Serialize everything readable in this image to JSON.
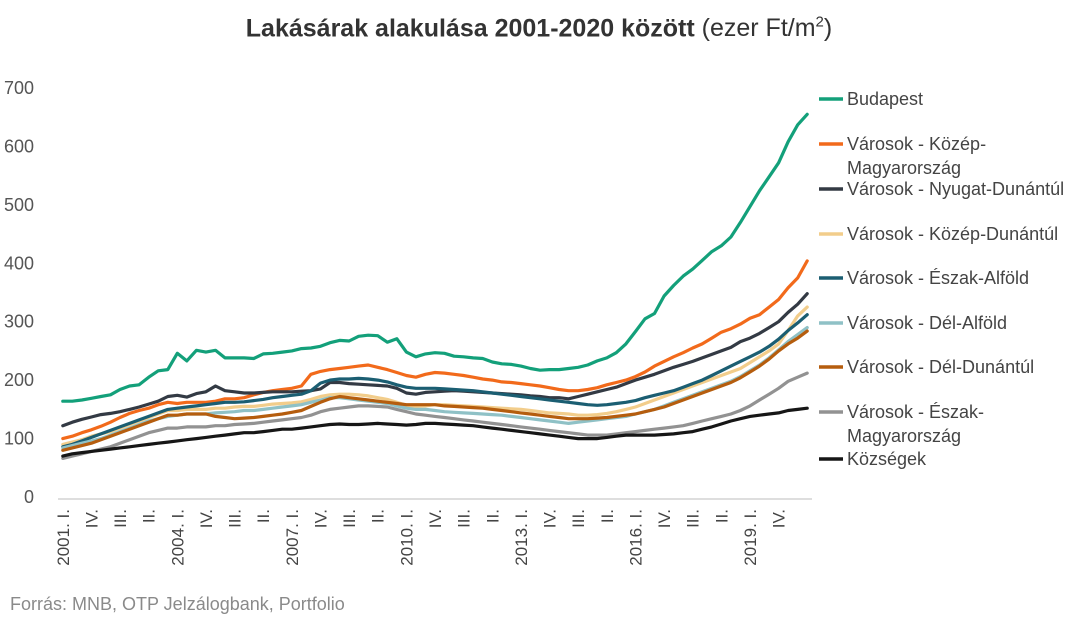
{
  "title": {
    "main": "Lakásárak alakulása 2001-2020 között",
    "unit_prefix": "(ezer Ft/m",
    "unit_sup": "2",
    "unit_suffix": ")"
  },
  "source": "Forrás: MNB, OTP Jelzálogbank, Portfolio",
  "chart_data": {
    "type": "line",
    "ylim": [
      0,
      700
    ],
    "yticks": [
      0,
      100,
      200,
      300,
      400,
      500,
      600,
      700
    ],
    "grid": false,
    "legend_position": "right",
    "x_periods": 79,
    "x_tick_labels": [
      {
        "i": 0,
        "label": "2001. I."
      },
      {
        "i": 3,
        "label": "IV."
      },
      {
        "i": 6,
        "label": "III."
      },
      {
        "i": 9,
        "label": "II."
      },
      {
        "i": 12,
        "label": "2004. I."
      },
      {
        "i": 15,
        "label": "IV."
      },
      {
        "i": 18,
        "label": "III."
      },
      {
        "i": 21,
        "label": "II."
      },
      {
        "i": 24,
        "label": "2007. I."
      },
      {
        "i": 27,
        "label": "IV."
      },
      {
        "i": 30,
        "label": "III."
      },
      {
        "i": 33,
        "label": "II."
      },
      {
        "i": 36,
        "label": "2010. I."
      },
      {
        "i": 39,
        "label": "IV."
      },
      {
        "i": 42,
        "label": "III."
      },
      {
        "i": 45,
        "label": "II."
      },
      {
        "i": 48,
        "label": "2013. I."
      },
      {
        "i": 51,
        "label": "IV."
      },
      {
        "i": 54,
        "label": "III."
      },
      {
        "i": 57,
        "label": "II."
      },
      {
        "i": 60,
        "label": "2016. I."
      },
      {
        "i": 63,
        "label": "IV."
      },
      {
        "i": 66,
        "label": "III."
      },
      {
        "i": 69,
        "label": "II."
      },
      {
        "i": 72,
        "label": "2019. I."
      },
      {
        "i": 75,
        "label": "IV."
      }
    ],
    "series": [
      {
        "name": "Budapest",
        "legend_lines": [
          "Budapest"
        ],
        "color": "#13a07a",
        "values": [
          164,
          164,
          166,
          169,
          172,
          175,
          184,
          190,
          192,
          205,
          216,
          218,
          246,
          233,
          251,
          248,
          251,
          238,
          238,
          238,
          237,
          245,
          246,
          248,
          250,
          254,
          255,
          258,
          264,
          268,
          267,
          275,
          277,
          276,
          265,
          271,
          248,
          240,
          245,
          247,
          246,
          241,
          240,
          238,
          237,
          231,
          228,
          227,
          224,
          220,
          217,
          218,
          218,
          220,
          222,
          226,
          233,
          238,
          247,
          262,
          283,
          305,
          314,
          344,
          362,
          378,
          390,
          405,
          420,
          430,
          445,
          470,
          497,
          524,
          548,
          572,
          608,
          637,
          655
        ]
      },
      {
        "name": "Városok - Közép-Magyarország",
        "legend_lines": [
          "Városok - Közép-",
          "Magyarország"
        ],
        "color": "#f26a1b",
        "values": [
          100,
          104,
          110,
          115,
          121,
          128,
          136,
          143,
          148,
          152,
          158,
          162,
          160,
          162,
          162,
          162,
          164,
          168,
          168,
          170,
          175,
          179,
          182,
          184,
          186,
          190,
          210,
          215,
          218,
          220,
          222,
          224,
          226,
          222,
          218,
          213,
          208,
          205,
          210,
          213,
          212,
          210,
          208,
          205,
          202,
          200,
          197,
          196,
          194,
          192,
          190,
          187,
          184,
          182,
          182,
          184,
          187,
          192,
          196,
          200,
          206,
          214,
          224,
          232,
          240,
          247,
          255,
          262,
          272,
          282,
          288,
          296,
          306,
          312,
          325,
          338,
          358,
          375,
          404
        ]
      },
      {
        "name": "Városok - Nyugat-Dunántúl",
        "legend_lines": [
          "Városok - Nyugat-Dunántúl"
        ],
        "color": "#333a44",
        "values": [
          122,
          128,
          133,
          137,
          141,
          143,
          146,
          150,
          154,
          159,
          164,
          172,
          174,
          171,
          177,
          180,
          190,
          182,
          180,
          178,
          178,
          179,
          180,
          180,
          180,
          181,
          182,
          185,
          196,
          196,
          194,
          193,
          192,
          191,
          190,
          186,
          178,
          176,
          179,
          180,
          181,
          182,
          181,
          180,
          179,
          178,
          177,
          176,
          175,
          173,
          172,
          170,
          170,
          168,
          172,
          176,
          180,
          184,
          188,
          194,
          200,
          205,
          210,
          216,
          222,
          227,
          232,
          238,
          244,
          250,
          256,
          266,
          272,
          280,
          290,
          300,
          316,
          330,
          348
        ]
      },
      {
        "name": "Városok - Közép-Dunántúl",
        "legend_lines": [
          "Városok - Közép-Dunántúl"
        ],
        "color": "#f2cd8b",
        "values": [
          90,
          94,
          98,
          104,
          108,
          112,
          118,
          124,
          130,
          136,
          142,
          148,
          148,
          150,
          150,
          150,
          152,
          152,
          154,
          155,
          155,
          157,
          159,
          160,
          161,
          163,
          167,
          172,
          175,
          176,
          176,
          175,
          173,
          170,
          167,
          162,
          157,
          155,
          156,
          158,
          158,
          157,
          156,
          155,
          154,
          153,
          152,
          151,
          150,
          148,
          146,
          144,
          143,
          142,
          140,
          140,
          141,
          143,
          146,
          150,
          154,
          160,
          166,
          172,
          178,
          184,
          190,
          196,
          202,
          208,
          214,
          220,
          230,
          240,
          250,
          262,
          285,
          310,
          325
        ]
      },
      {
        "name": "Városok - Észak-Alföld",
        "legend_lines": [
          "Városok - Észak-Alföld"
        ],
        "color": "#1b5e72",
        "values": [
          86,
          90,
          96,
          102,
          108,
          114,
          120,
          126,
          132,
          138,
          144,
          150,
          152,
          154,
          156,
          158,
          160,
          162,
          162,
          163,
          165,
          167,
          170,
          172,
          174,
          176,
          182,
          195,
          200,
          202,
          202,
          203,
          202,
          200,
          197,
          192,
          188,
          186,
          186,
          186,
          185,
          184,
          183,
          182,
          180,
          178,
          176,
          174,
          172,
          170,
          168,
          166,
          164,
          162,
          160,
          158,
          157,
          158,
          160,
          162,
          165,
          170,
          174,
          178,
          182,
          188,
          194,
          200,
          208,
          216,
          224,
          232,
          240,
          248,
          258,
          270,
          285,
          298,
          312
        ]
      },
      {
        "name": "Városok - Dél-Alföld",
        "legend_lines": [
          "Városok - Dél-Alföld"
        ],
        "color": "#8fc1c6",
        "values": [
          84,
          88,
          92,
          96,
          100,
          106,
          112,
          118,
          124,
          130,
          134,
          138,
          140,
          142,
          142,
          142,
          144,
          145,
          146,
          148,
          148,
          150,
          152,
          154,
          156,
          158,
          162,
          166,
          170,
          170,
          168,
          166,
          164,
          162,
          160,
          156,
          152,
          150,
          150,
          148,
          146,
          145,
          144,
          143,
          142,
          141,
          140,
          138,
          136,
          134,
          132,
          130,
          128,
          126,
          128,
          130,
          132,
          134,
          136,
          138,
          142,
          146,
          150,
          156,
          162,
          168,
          174,
          180,
          186,
          192,
          198,
          206,
          216,
          226,
          238,
          252,
          266,
          278,
          290
        ]
      },
      {
        "name": "Városok - Dél-Dunántúl",
        "legend_lines": [
          "Városok - Dél-Dunántúl"
        ],
        "color": "#b55d0e",
        "values": [
          80,
          84,
          88,
          92,
          98,
          104,
          110,
          116,
          122,
          128,
          134,
          140,
          140,
          142,
          142,
          142,
          138,
          136,
          134,
          135,
          136,
          138,
          140,
          142,
          145,
          148,
          155,
          162,
          168,
          172,
          170,
          168,
          166,
          164,
          162,
          160,
          158,
          158,
          158,
          158,
          156,
          155,
          154,
          153,
          152,
          150,
          148,
          146,
          144,
          142,
          140,
          138,
          136,
          134,
          134,
          134,
          135,
          136,
          138,
          140,
          142,
          146,
          150,
          154,
          160,
          166,
          172,
          178,
          184,
          190,
          196,
          204,
          214,
          224,
          236,
          250,
          262,
          272,
          284
        ]
      },
      {
        "name": "Városok - Észak-Magyarország",
        "legend_lines": [
          "Városok - Észak-",
          "Magyarország"
        ],
        "color": "#929292",
        "values": [
          66,
          70,
          74,
          78,
          82,
          86,
          92,
          98,
          104,
          110,
          114,
          118,
          118,
          120,
          120,
          120,
          122,
          122,
          124,
          125,
          126,
          128,
          130,
          132,
          134,
          136,
          140,
          146,
          150,
          152,
          154,
          156,
          156,
          155,
          154,
          150,
          146,
          142,
          140,
          138,
          136,
          134,
          132,
          130,
          128,
          126,
          124,
          122,
          120,
          118,
          116,
          114,
          112,
          110,
          108,
          106,
          106,
          106,
          108,
          110,
          112,
          114,
          116,
          118,
          120,
          122,
          126,
          130,
          134,
          138,
          142,
          148,
          156,
          166,
          176,
          186,
          198,
          205,
          212
        ]
      },
      {
        "name": "Községek",
        "legend_lines": [
          "Községek"
        ],
        "color": "#161616",
        "values": [
          70,
          74,
          76,
          78,
          80,
          82,
          84,
          86,
          88,
          90,
          92,
          94,
          96,
          98,
          100,
          102,
          104,
          106,
          108,
          110,
          110,
          112,
          114,
          116,
          116,
          118,
          120,
          122,
          124,
          125,
          124,
          124,
          125,
          126,
          125,
          124,
          123,
          124,
          126,
          126,
          125,
          124,
          123,
          122,
          120,
          118,
          116,
          114,
          112,
          110,
          108,
          106,
          104,
          102,
          100,
          100,
          100,
          102,
          104,
          106,
          106,
          106,
          106,
          107,
          108,
          110,
          112,
          116,
          120,
          125,
          130,
          134,
          138,
          140,
          142,
          144,
          148,
          150,
          152
        ]
      }
    ]
  }
}
